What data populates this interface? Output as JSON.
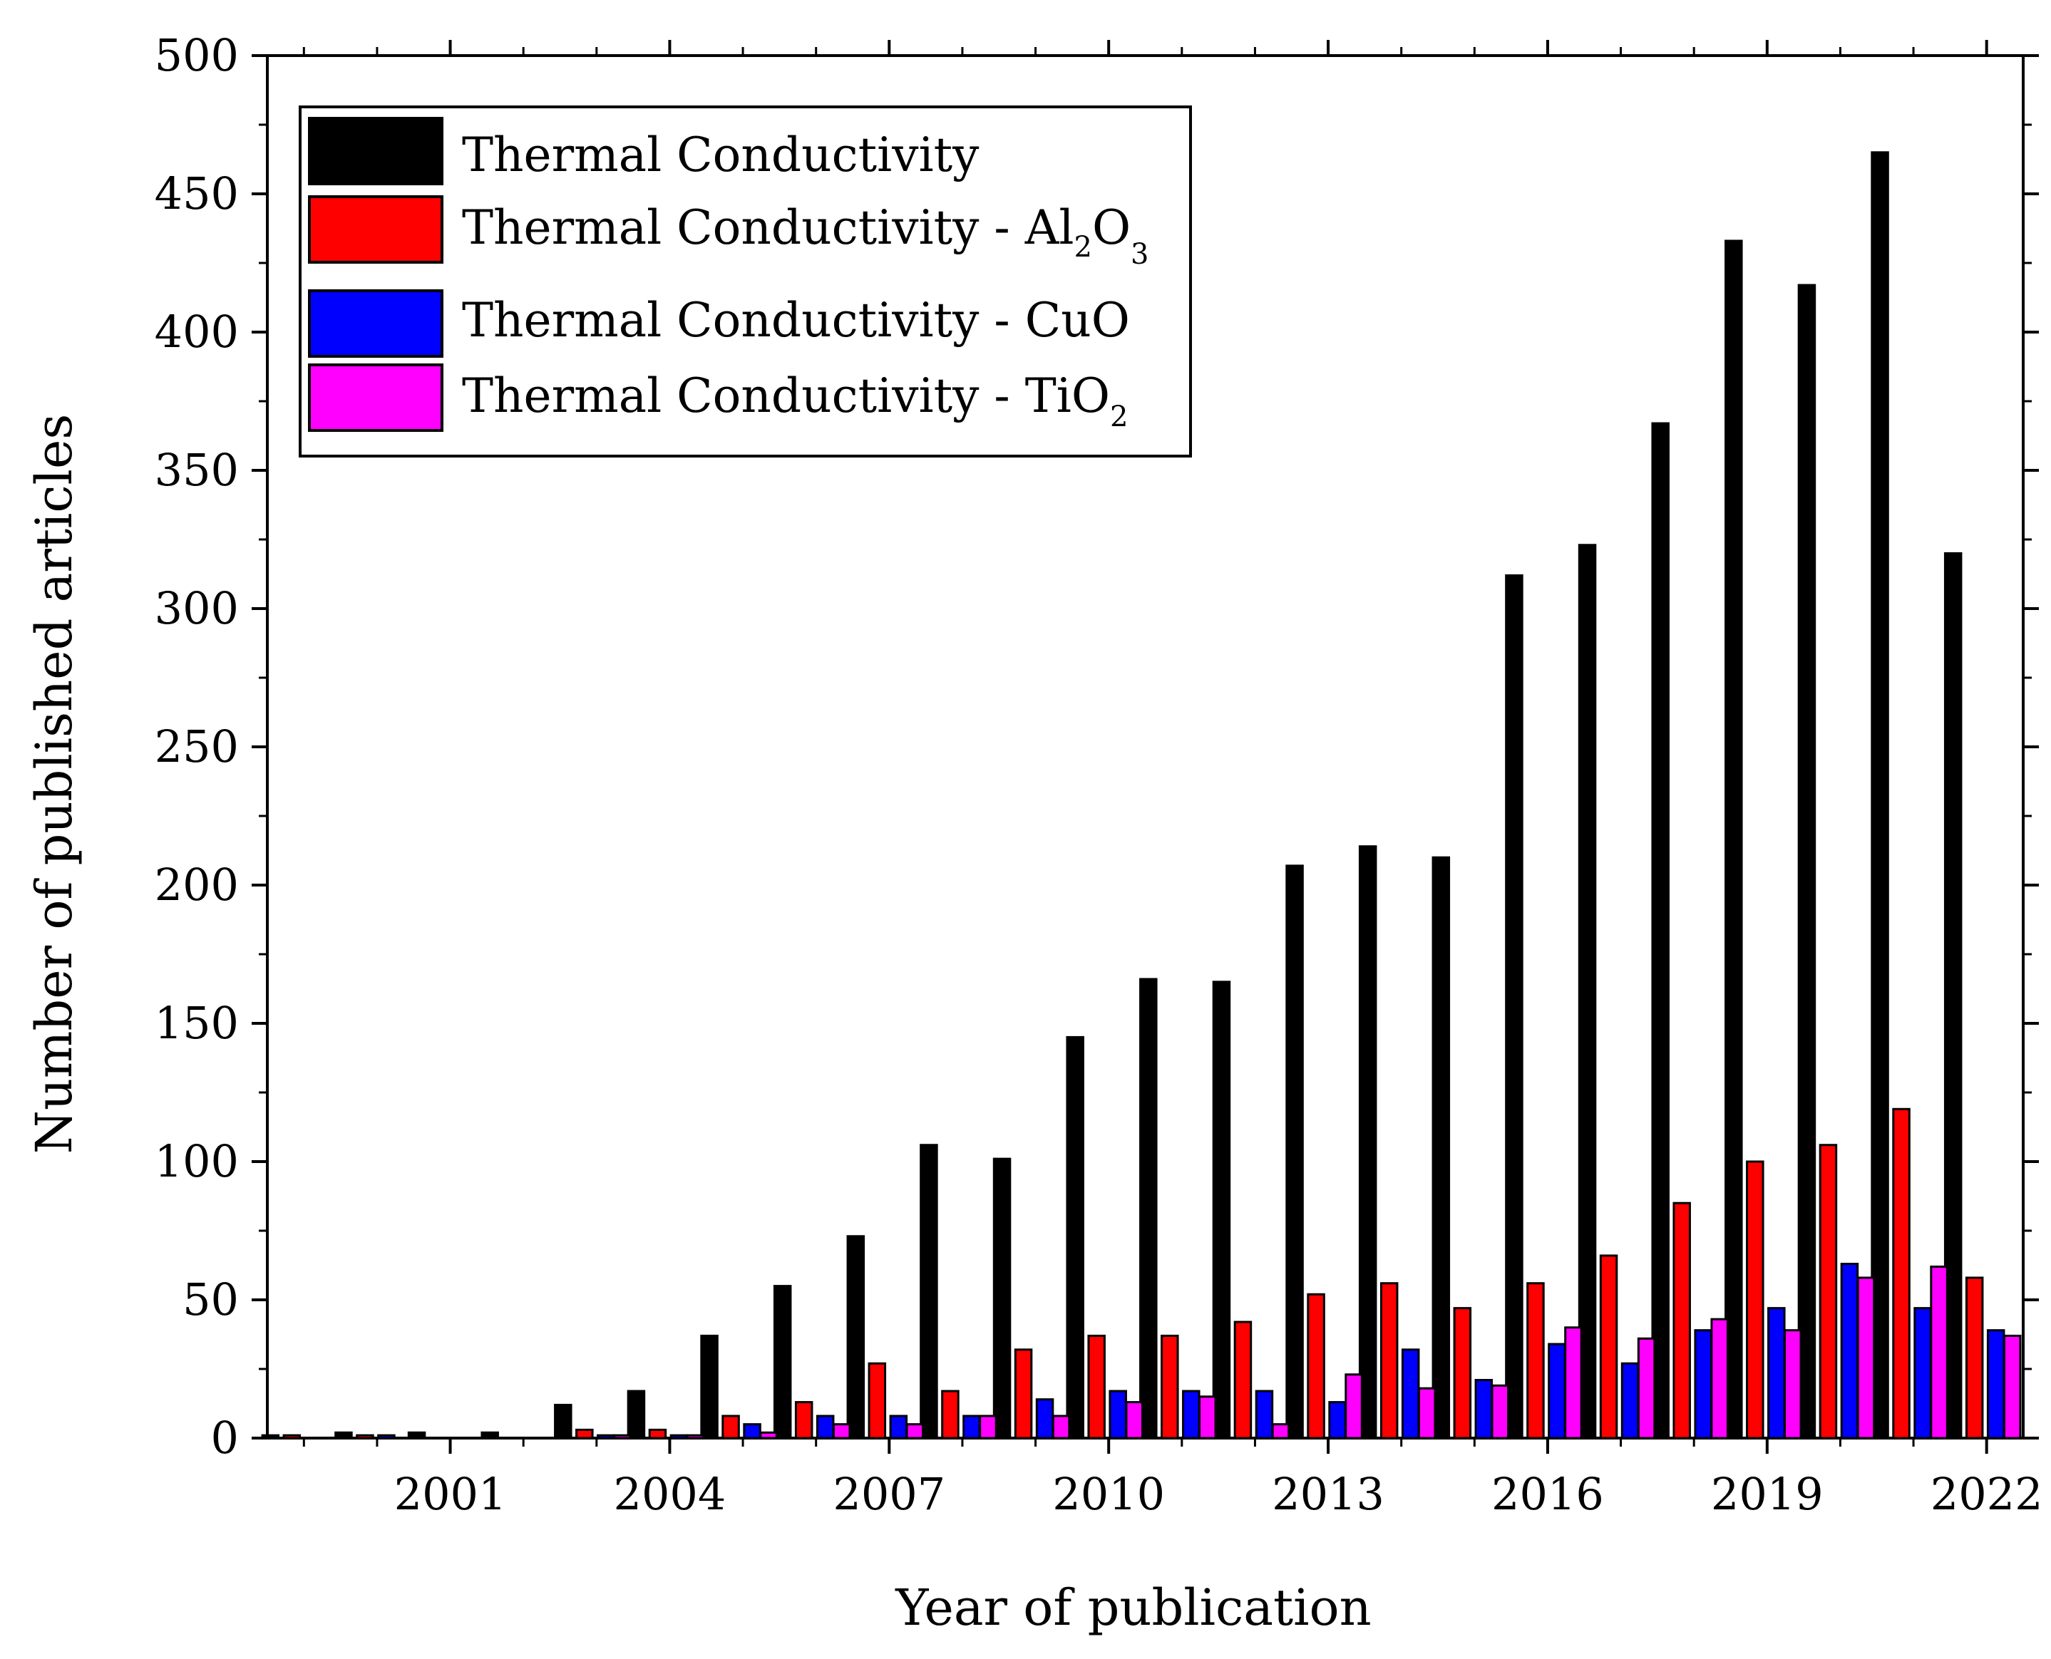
{
  "chart_data": {
    "type": "bar",
    "title": "",
    "xlabel": "Year of publication",
    "ylabel": "Number of published articles",
    "ylim": [
      0,
      500
    ],
    "yticks": [
      0,
      50,
      100,
      150,
      200,
      250,
      300,
      350,
      400,
      450,
      500
    ],
    "categories": [
      "1999",
      "2000",
      "2001",
      "2002",
      "2003",
      "2004",
      "2005",
      "2006",
      "2007",
      "2008",
      "2009",
      "2010",
      "2011",
      "2012",
      "2013",
      "2014",
      "2015",
      "2016",
      "2017",
      "2018",
      "2019",
      "2020",
      "2021",
      "2022"
    ],
    "xtick_labels": [
      "2001",
      "2004",
      "2007",
      "2010",
      "2013",
      "2016",
      "2019",
      "2022"
    ],
    "legend_position": "top-left",
    "series": [
      {
        "name": "Thermal  Conductivity",
        "label_main": "Thermal  Conductivity",
        "color": "#000000",
        "values": [
          1,
          2,
          2,
          2,
          12,
          17,
          37,
          55,
          73,
          106,
          101,
          145,
          166,
          165,
          207,
          214,
          210,
          312,
          323,
          367,
          433,
          417,
          465,
          320
        ]
      },
      {
        "name": "Thermal Conductivity - Al2O3",
        "label_main": "Thermal Conductivity - Al",
        "label_sub1": "2",
        "label_mid": "O",
        "label_sub2": "3",
        "color": "#ff0000",
        "values": [
          1,
          1,
          0,
          0,
          3,
          3,
          8,
          13,
          27,
          17,
          32,
          37,
          37,
          42,
          52,
          56,
          47,
          56,
          66,
          85,
          100,
          106,
          119,
          58
        ]
      },
      {
        "name": "Thermal Conductivity - CuO",
        "label_main": "Thermal Conductivity - CuO",
        "color": "#0000ff",
        "values": [
          0,
          1,
          0,
          0,
          1,
          1,
          5,
          8,
          8,
          8,
          14,
          17,
          17,
          17,
          13,
          32,
          21,
          34,
          27,
          39,
          47,
          63,
          47,
          39
        ]
      },
      {
        "name": "Thermal Conductivity - TiO2",
        "label_main": "Thermal Conductivity - TiO",
        "label_sub1": "2",
        "color": "#ff00ff",
        "values": [
          0,
          0,
          0,
          0,
          1,
          1,
          2,
          5,
          5,
          8,
          8,
          13,
          15,
          5,
          23,
          18,
          19,
          40,
          36,
          43,
          39,
          58,
          62,
          37
        ]
      }
    ]
  }
}
